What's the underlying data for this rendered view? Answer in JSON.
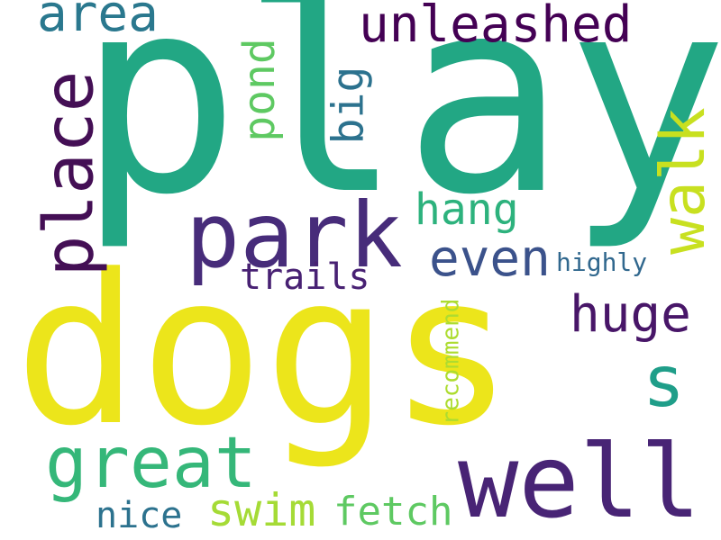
{
  "words": {
    "play": {
      "text": "play",
      "color": "#22a784"
    },
    "dogs": {
      "text": "dogs",
      "color": "#ece51b"
    },
    "park": {
      "text": "park",
      "color": "#472c7a"
    },
    "well": {
      "text": "well",
      "color": "#482475"
    },
    "great": {
      "text": "great",
      "color": "#35b779"
    },
    "place": {
      "text": "place",
      "color": "#440f55"
    },
    "walk": {
      "text": "walk",
      "color": "#c8e020"
    },
    "unleashed": {
      "text": "unleashed",
      "color": "#440154"
    },
    "area": {
      "text": "area",
      "color": "#2a788e"
    },
    "even": {
      "text": "even",
      "color": "#3b528b"
    },
    "huge": {
      "text": "huge",
      "color": "#481668"
    },
    "s": {
      "text": "s",
      "color": "#1f9e89"
    },
    "pond": {
      "text": "pond",
      "color": "#5ec962"
    },
    "big": {
      "text": "big",
      "color": "#2c728e"
    },
    "hang": {
      "text": "hang",
      "color": "#2db27d"
    },
    "trails": {
      "text": "trails",
      "color": "#482173"
    },
    "swim": {
      "text": "swim",
      "color": "#a5db36"
    },
    "fetch": {
      "text": "fetch",
      "color": "#5ec962"
    },
    "nice": {
      "text": "nice",
      "color": "#2c728e"
    },
    "highly": {
      "text": "highly",
      "color": "#31688e"
    },
    "recommend": {
      "text": "recommend",
      "color": "#addc30"
    }
  }
}
